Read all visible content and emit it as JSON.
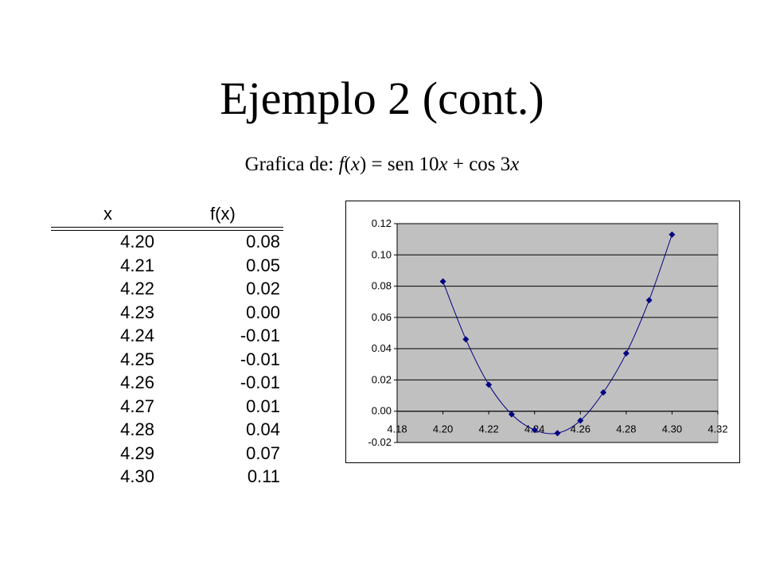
{
  "slide": {
    "title": "Ejemplo 2 (cont.)",
    "subtitle": {
      "prefix": "Grafica de: ",
      "fn": "f",
      "open": "(",
      "var1": "x",
      "mid": ") = sen 10",
      "var2": "x",
      "plus": " + cos 3",
      "var3": "x"
    }
  },
  "table": {
    "headers": [
      "x",
      "f(x)"
    ],
    "rows": [
      [
        "4.20",
        "0.08"
      ],
      [
        "4.21",
        "0.05"
      ],
      [
        "4.22",
        "0.02"
      ],
      [
        "4.23",
        "0.00"
      ],
      [
        "4.24",
        "-0.01"
      ],
      [
        "4.25",
        "-0.01"
      ],
      [
        "4.26",
        "-0.01"
      ],
      [
        "4.27",
        "0.01"
      ],
      [
        "4.28",
        "0.04"
      ],
      [
        "4.29",
        "0.07"
      ],
      [
        "4.30",
        "0.11"
      ]
    ]
  },
  "chart_data": {
    "type": "scatter",
    "x": [
      4.2,
      4.21,
      4.22,
      4.23,
      4.24,
      4.25,
      4.26,
      4.27,
      4.28,
      4.29,
      4.3
    ],
    "y": [
      0.083,
      0.046,
      0.017,
      -0.002,
      -0.012,
      -0.014,
      -0.006,
      0.012,
      0.037,
      0.071,
      0.113
    ],
    "xlim": [
      4.18,
      4.32
    ],
    "ylim": [
      -0.02,
      0.12
    ],
    "xticks": [
      "4.18",
      "4.20",
      "4.22",
      "4.24",
      "4.26",
      "4.28",
      "4.30",
      "4.32"
    ],
    "yticks": [
      "-0.02",
      "0.00",
      "0.02",
      "0.04",
      "0.06",
      "0.08",
      "0.10",
      "0.12"
    ],
    "grid": "horizontal",
    "legend": "none",
    "plot_background": "#c0c0c0",
    "series_color": "#000080",
    "marker": "diamond",
    "smooth_line": true
  }
}
